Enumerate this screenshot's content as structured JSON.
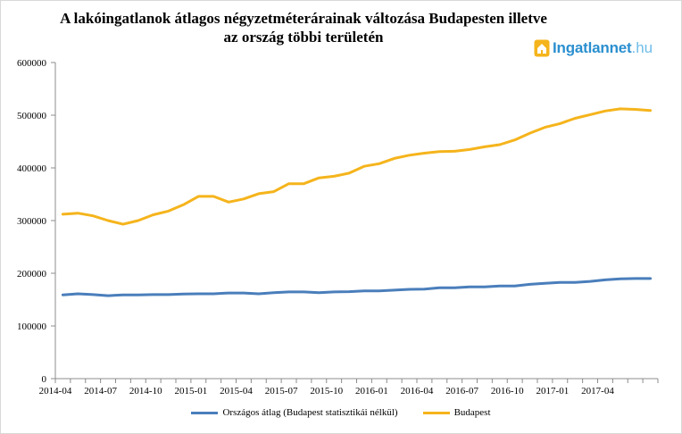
{
  "title_lines": [
    "A lakóingatlanok átlagos négyzetméterárainak változása Budapesten illetve",
    "az ország többi területén"
  ],
  "logo": {
    "name": "Ingatlannet",
    "suffix": ".hu",
    "icon": "house-icon"
  },
  "colors": {
    "series_orszagos": "#4a7ebb",
    "series_budapest": "#f5b41c",
    "axis": "#8c8c8c",
    "logo": "#2a8fcf",
    "logo_light": "#6fbde8",
    "logo_icon": "#f5b41c"
  },
  "chart_data": {
    "type": "line",
    "title": "A lakóingatlanok átlagos négyzetméterárainak változása Budapesten illetve az ország többi területén",
    "xlabel": "",
    "ylabel": "",
    "ylim": [
      0,
      600000
    ],
    "yticks": [
      0,
      100000,
      200000,
      300000,
      400000,
      500000,
      600000
    ],
    "ytick_labels": [
      "0",
      "100000",
      "200000",
      "300000",
      "400000",
      "500000",
      "600000"
    ],
    "xtick_labels": [
      "2014-04",
      "2014-07",
      "2014-10",
      "2015-01",
      "2015-04",
      "2015-07",
      "2015-10",
      "2016-01",
      "2016-04",
      "2016-07",
      "2016-10",
      "2017-01",
      "2017-04"
    ],
    "grid": false,
    "legend_position": "bottom",
    "x": [
      "2014-04",
      "2014-05",
      "2014-06",
      "2014-07",
      "2014-08",
      "2014-09",
      "2014-10",
      "2014-11",
      "2014-12",
      "2015-01",
      "2015-02",
      "2015-03",
      "2015-04",
      "2015-05",
      "2015-06",
      "2015-07",
      "2015-08",
      "2015-09",
      "2015-10",
      "2015-11",
      "2015-12",
      "2016-01",
      "2016-02",
      "2016-03",
      "2016-04",
      "2016-05",
      "2016-06",
      "2016-07",
      "2016-08",
      "2016-09",
      "2016-10",
      "2016-11",
      "2016-12",
      "2017-01",
      "2017-02",
      "2017-03",
      "2017-04",
      "2017-05",
      "2017-06",
      "2017-07"
    ],
    "series": [
      {
        "name": "Országos átlag (Budapest statisztikái nélkül)",
        "values": [
          159000,
          161000,
          159500,
          157500,
          159000,
          159000,
          159500,
          159500,
          160500,
          161000,
          161000,
          162500,
          162500,
          161000,
          163000,
          164500,
          164500,
          163000,
          164500,
          165000,
          166500,
          166500,
          168000,
          169500,
          170000,
          172500,
          172500,
          174000,
          174000,
          176000,
          176000,
          179000,
          181000,
          182500,
          182500,
          184500,
          187500,
          189500,
          190000,
          190000
        ]
      },
      {
        "name": "Budapest",
        "values": [
          312000,
          314000,
          309000,
          300000,
          293000,
          300000,
          311000,
          318000,
          330000,
          346000,
          346000,
          335000,
          341000,
          351000,
          355000,
          370000,
          370000,
          381000,
          384000,
          390000,
          403000,
          408000,
          418000,
          424000,
          428000,
          431000,
          431500,
          435000,
          440000,
          444000,
          453000,
          466000,
          477000,
          484000,
          494000,
          501000,
          508000,
          512000,
          511000,
          509000
        ]
      }
    ]
  }
}
